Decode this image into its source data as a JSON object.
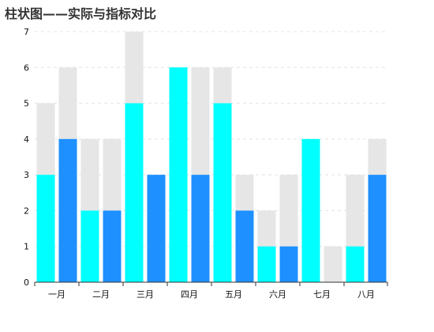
{
  "chart_data": {
    "type": "bar",
    "title": "柱状图——实际与指标对比",
    "subtitle": "",
    "xlabel": "",
    "ylabel": "",
    "ylim": [
      0,
      7
    ],
    "yticks": [
      "0",
      "1",
      "2",
      "3",
      "4",
      "5",
      "6",
      "7"
    ],
    "grid": true,
    "legend": "none",
    "categories": [
      "一月",
      "二月",
      "三月",
      "四月",
      "五月",
      "六月",
      "七月",
      "八月"
    ],
    "group_size": 2,
    "target_values": [
      5,
      6,
      4,
      4,
      7,
      3,
      6,
      6,
      6,
      3,
      2,
      3,
      1,
      1,
      3,
      4
    ],
    "actual_values": [
      3,
      4,
      2,
      2,
      5,
      3,
      6,
      3,
      5,
      2,
      1,
      1,
      4,
      0,
      1,
      3
    ],
    "colors": {
      "target": "#e6e6e6",
      "actual_primary": "#00ffff",
      "actual_secondary": "#1e90ff",
      "grid": "#e4e4e4",
      "axis": "#333333"
    }
  }
}
